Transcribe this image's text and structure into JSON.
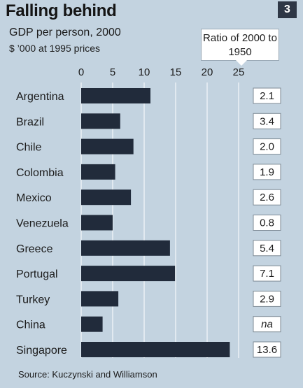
{
  "header": {
    "title": "Falling behind",
    "badge": "3",
    "subtitle": "GDP per person, 2000",
    "units": "$ ’000 at 1995 prices",
    "ratio_header": "Ratio of 2000 to 1950"
  },
  "chart_data": {
    "type": "bar",
    "orientation": "horizontal",
    "title": "Falling behind",
    "subtitle": "GDP per person, 2000",
    "units": "$ ’000 at 1995 prices",
    "xlim": [
      0,
      25
    ],
    "xticks": [
      0,
      5,
      10,
      15,
      20,
      25
    ],
    "grid": true,
    "bar_color": "#212b3b",
    "categories": [
      "Argentina",
      "Brazil",
      "Chile",
      "Colombia",
      "Mexico",
      "Venezuela",
      "Greece",
      "Portugal",
      "Turkey",
      "China",
      "Singapore"
    ],
    "values": [
      11.0,
      6.2,
      8.3,
      5.4,
      7.9,
      5.0,
      14.1,
      14.9,
      5.9,
      3.4,
      23.6
    ],
    "ratio_header": "Ratio of 2000 to 1950",
    "ratios": [
      "2.1",
      "3.4",
      "2.0",
      "1.9",
      "2.6",
      "0.8",
      "5.4",
      "7.1",
      "2.9",
      "na",
      "13.6"
    ]
  },
  "footer": {
    "source": "Source: Kuczynski and Williamson"
  }
}
